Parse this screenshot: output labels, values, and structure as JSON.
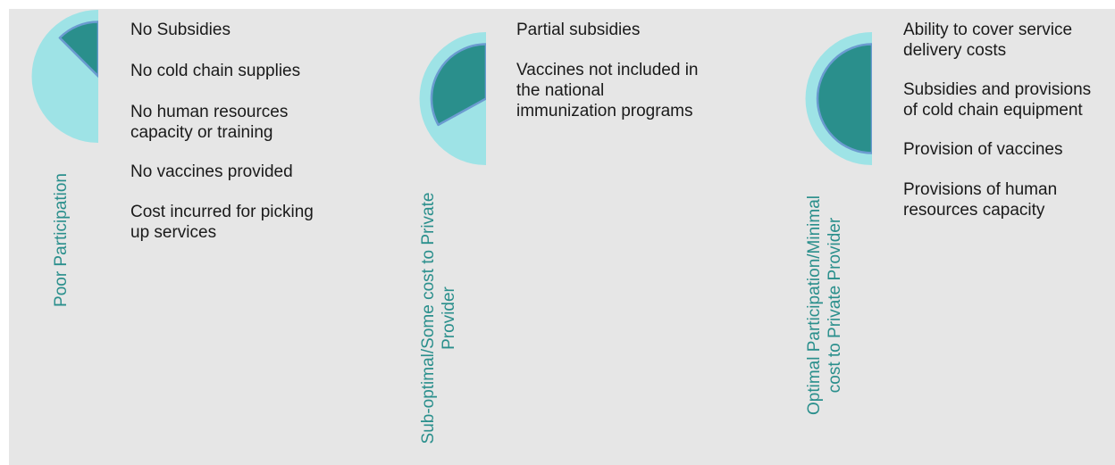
{
  "colors": {
    "background": "#e6e6e6",
    "outer_fill": "#9ee3e6",
    "inner_fill": "#2a8f8c",
    "inner_stroke": "#6b9bd0",
    "label_text": "#2a8f8c",
    "body_text": "#1a1a1a"
  },
  "stages": [
    {
      "label_lines": [
        "Poor Participation"
      ],
      "level": 0.125,
      "items": [
        [
          "No Subsidies"
        ],
        [
          "No cold chain supplies"
        ],
        [
          "No human resources",
          "capacity or training"
        ],
        [
          "No vaccines provided"
        ],
        [
          "Cost incurred for picking",
          "up services"
        ]
      ]
    },
    {
      "label_lines": [
        "Sub-optimal/Some cost to Private",
        "Provider"
      ],
      "level": 0.33,
      "items": [
        [
          "Partial subsidies"
        ],
        [
          "Vaccines not included in",
          "the national",
          "immunization programs"
        ]
      ]
    },
    {
      "label_lines": [
        "Optimal Participation/Minimal",
        "cost to Private Provider"
      ],
      "level": 0.5,
      "items": [
        [
          "Ability to cover service",
          "delivery costs"
        ],
        [
          "Subsidies and provisions",
          "of cold chain equipment"
        ],
        [
          "Provision of vaccines"
        ],
        [
          "Provisions of human",
          "resources capacity"
        ]
      ]
    }
  ]
}
